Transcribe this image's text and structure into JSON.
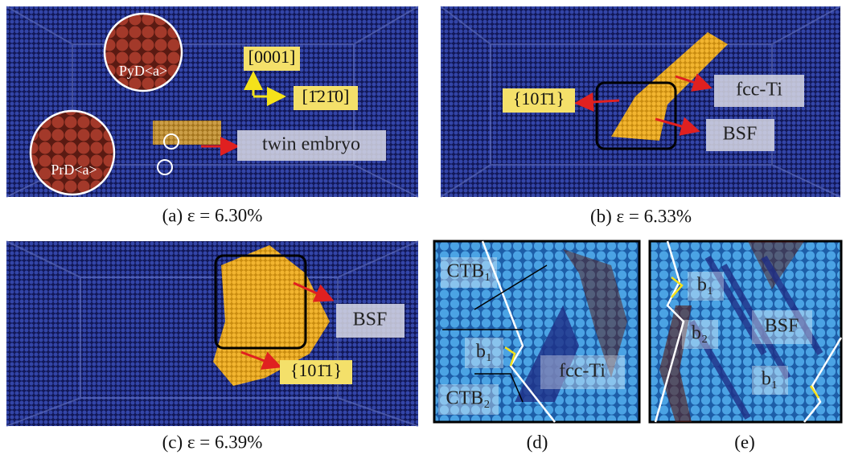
{
  "panels": [
    {
      "caption": "(a) ε = 6.30%",
      "labels": [
        "[0001]",
        "[1̄21̄0]",
        "PyD<a>",
        "PrD<a>",
        "twin embryo"
      ]
    },
    {
      "caption": "(b) ε = 6.33%",
      "labels": [
        "{101̄1}",
        "fcc-Ti",
        "BSF"
      ]
    },
    {
      "caption": "(c) ε = 6.39%",
      "labels": [
        "BSF",
        "{101̄1}"
      ]
    },
    {
      "caption": "(d)",
      "labels": [
        "CTB₁",
        "b₁",
        "fcc-Ti",
        "CTB₂"
      ]
    },
    {
      "caption": "(e)",
      "labels": [
        "b₁",
        "b₂",
        "BSF",
        "b₁"
      ]
    }
  ]
}
